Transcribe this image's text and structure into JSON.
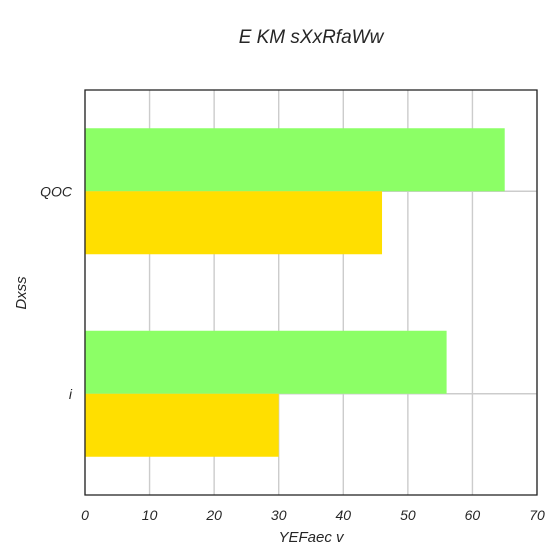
{
  "chart_data": {
    "type": "bar",
    "orientation": "horizontal",
    "title": "E KM sXxRfaWw",
    "xlabel": "YEFaec v",
    "ylabel": "Dxss",
    "categories": [
      "i",
      "QOC"
    ],
    "series": [
      {
        "color": "#8cff66",
        "values": [
          56,
          65
        ]
      },
      {
        "color": "#ffdf00",
        "values": [
          30,
          46
        ]
      }
    ],
    "xlim": [
      0,
      70
    ],
    "xticks": [
      0,
      10,
      20,
      30,
      40,
      50,
      60,
      70
    ],
    "grid": true,
    "legend": "none"
  }
}
